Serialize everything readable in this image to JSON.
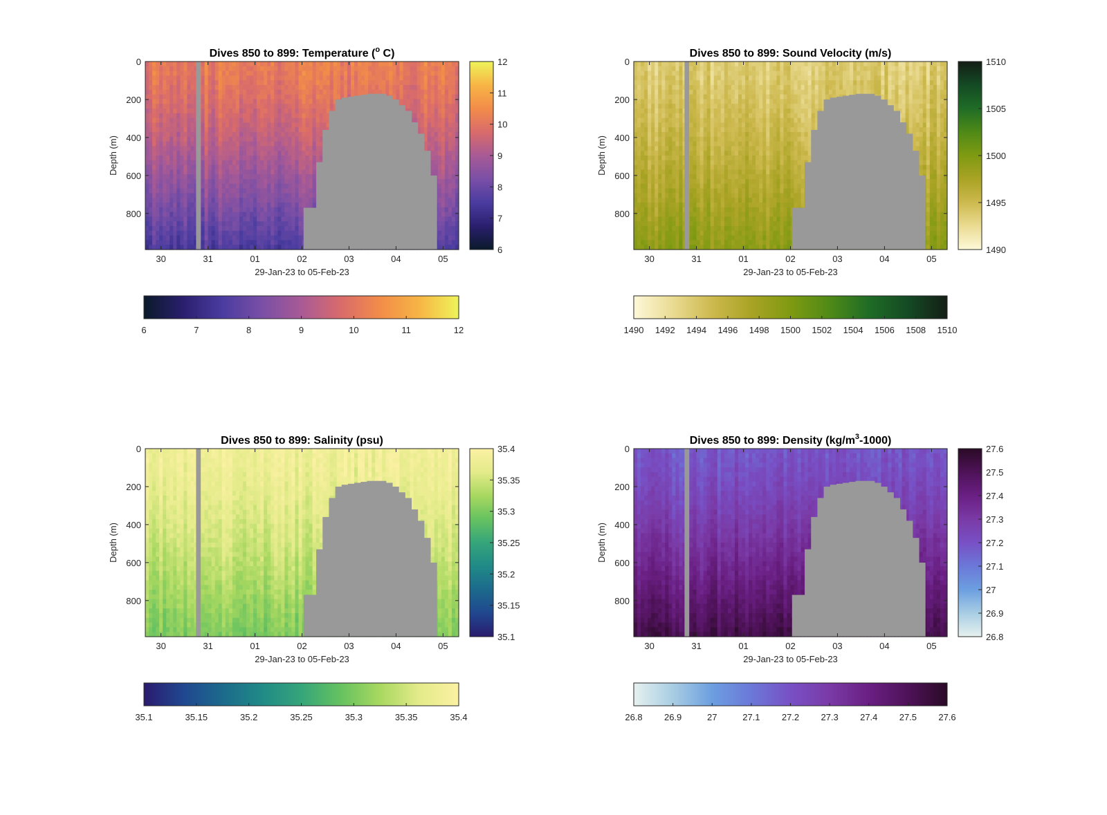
{
  "chart_data": [
    {
      "type": "heatmap",
      "title_prefix": "Dives 850 to 899: ",
      "title_main": "Temperature (",
      "title_sup": "o",
      "title_end": " C)",
      "xlabel": "29-Jan-23 to 05-Feb-23",
      "ylabel": "Depth (m)",
      "xticks": [
        "30",
        "31",
        "01",
        "02",
        "03",
        "04",
        "05"
      ],
      "yticks": [
        "0",
        "200",
        "400",
        "600",
        "800"
      ],
      "ylim": [
        0,
        990
      ],
      "xlim": [
        "2023-01-29T16:00",
        "2023-02-05T08:00"
      ],
      "colormap": [
        "#0a1a2a",
        "#2a1f6e",
        "#4a3ca0",
        "#7a4fa6",
        "#a85a95",
        "#d96b6b",
        "#f28c49",
        "#f7b545",
        "#eef45a"
      ],
      "cbar_ticks": [
        "6",
        "7",
        "8",
        "9",
        "10",
        "11",
        "12"
      ],
      "hcbar_ticks": [
        "6",
        "7",
        "8",
        "9",
        "10",
        "11",
        "12"
      ],
      "clim": [
        6,
        12
      ],
      "surface_value": 10.2,
      "deep_value": 7.6
    },
    {
      "type": "heatmap",
      "title_prefix": "Dives 850 to 899: ",
      "title_main": "Sound Velocity (m/s)",
      "title_sup": "",
      "title_end": "",
      "xlabel": "29-Jan-23 to 05-Feb-23",
      "ylabel": "Depth (m)",
      "xticks": [
        "30",
        "31",
        "01",
        "02",
        "03",
        "04",
        "05"
      ],
      "yticks": [
        "0",
        "200",
        "400",
        "600",
        "800"
      ],
      "ylim": [
        0,
        990
      ],
      "xlim": [
        "2023-01-29T16:00",
        "2023-02-05T08:00"
      ],
      "colormap": [
        "#fdf8d8",
        "#eadb92",
        "#cdb94e",
        "#a9a324",
        "#7f9a12",
        "#4f8a17",
        "#1f6c26",
        "#144a24",
        "#141e16"
      ],
      "cbar_ticks": [
        "1490",
        "1495",
        "1500",
        "1505",
        "1510"
      ],
      "hcbar_ticks": [
        "1490",
        "1492",
        "1494",
        "1496",
        "1498",
        "1500",
        "1502",
        "1504",
        "1506",
        "1508",
        "1510"
      ],
      "clim": [
        1490,
        1510
      ],
      "surface_value": 1493.5,
      "deep_value": 1499.0
    },
    {
      "type": "heatmap",
      "title_prefix": "Dives 850 to 899: ",
      "title_main": "Salinity (psu)",
      "title_sup": "",
      "title_end": "",
      "xlabel": "29-Jan-23 to 05-Feb-23",
      "ylabel": "Depth (m)",
      "xticks": [
        "30",
        "31",
        "01",
        "02",
        "03",
        "04",
        "05"
      ],
      "yticks": [
        "0",
        "200",
        "400",
        "600",
        "800"
      ],
      "ylim": [
        0,
        990
      ],
      "xlim": [
        "2023-01-29T16:00",
        "2023-02-05T08:00"
      ],
      "colormap": [
        "#2a1b6e",
        "#20478f",
        "#1c6a8c",
        "#208a87",
        "#35a57a",
        "#66c260",
        "#a8d860",
        "#e4eb8a",
        "#fbf1a3"
      ],
      "cbar_ticks": [
        "35.4",
        "35.35",
        "35.3",
        "35.25",
        "35.2",
        "35.15",
        "35.1"
      ],
      "hcbar_ticks": [
        "35.1",
        "35.15",
        "35.2",
        "35.25",
        "35.3",
        "35.35",
        "35.4"
      ],
      "clim": [
        35.1,
        35.4
      ],
      "surface_value": 35.38,
      "deep_value": 35.3
    },
    {
      "type": "heatmap",
      "title_prefix": "Dives 850 to 899: ",
      "title_main": "Density (kg/m",
      "title_sup": "3",
      "title_end": "-1000)",
      "xlabel": "29-Jan-23 to 05-Feb-23",
      "ylabel": "Depth (m)",
      "xticks": [
        "30",
        "31",
        "01",
        "02",
        "03",
        "04",
        "05"
      ],
      "yticks": [
        "0",
        "200",
        "400",
        "600",
        "800"
      ],
      "ylim": [
        0,
        990
      ],
      "xlim": [
        "2023-01-29T16:00",
        "2023-02-05T08:00"
      ],
      "colormap": [
        "#e6f1ef",
        "#a8cde3",
        "#6c9fe0",
        "#6b78d8",
        "#7850c5",
        "#7a3aa6",
        "#6a1f83",
        "#4e1258",
        "#2a0a26"
      ],
      "cbar_ticks": [
        "27.6",
        "27.5",
        "27.4",
        "27.3",
        "27.2",
        "27.1",
        "27",
        "26.9",
        "26.8"
      ],
      "hcbar_ticks": [
        "26.8",
        "26.9",
        "27",
        "27.1",
        "27.2",
        "27.3",
        "27.4",
        "27.5",
        "27.6"
      ],
      "clim": [
        26.8,
        27.6
      ],
      "surface_value": 27.18,
      "deep_value": 27.52
    }
  ],
  "nodata_color": "#999999"
}
